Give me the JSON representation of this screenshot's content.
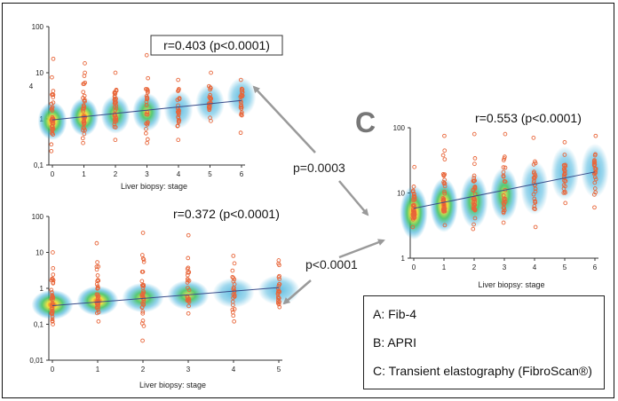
{
  "colors": {
    "points": "#e8663a",
    "regression": "#3a4d8a",
    "arrow": "#9a9a9a",
    "density": [
      "#2aa8d8",
      "#39c05a",
      "#f0e03a",
      "#ee3b1f"
    ]
  },
  "panel_letter": "C",
  "comparisons": {
    "ab": "p=0.0003",
    "bc": "p<0.0001"
  },
  "legend": {
    "items": [
      "A: Fib-4",
      "B: APRI",
      "C: Transient elastography (FibroScan®)"
    ]
  },
  "chart_data": [
    {
      "id": "A",
      "type": "scatter",
      "title": "r=0.403 (p<0.0001)",
      "title_boxed": true,
      "xlabel": "Liver biopsy: stage",
      "ylabel": "4",
      "yscale": "log",
      "ylim": [
        0.1,
        100
      ],
      "y_ticks": [
        0.1,
        1,
        10,
        100
      ],
      "y_tick_labels": [
        "0,1",
        "1",
        "10",
        "100"
      ],
      "x_ticks": [
        0,
        1,
        2,
        3,
        4,
        5,
        6
      ],
      "x_tick_labels": [
        "0",
        "1",
        "2",
        "3",
        "4",
        "5",
        "6"
      ],
      "groups": [
        {
          "x": 0,
          "median": 0.9,
          "min": 0.2,
          "max": 20
        },
        {
          "x": 1,
          "median": 1.1,
          "min": 0.3,
          "max": 16
        },
        {
          "x": 2,
          "median": 1.25,
          "min": 0.35,
          "max": 10
        },
        {
          "x": 3,
          "median": 1.4,
          "min": 0.3,
          "max": 24
        },
        {
          "x": 4,
          "median": 1.6,
          "min": 0.35,
          "max": 7
        },
        {
          "x": 5,
          "median": 2.2,
          "min": 0.9,
          "max": 10
        },
        {
          "x": 6,
          "median": 3,
          "min": 0.5,
          "max": 7
        }
      ],
      "regression": {
        "x": [
          0,
          6
        ],
        "y": [
          0.95,
          2.5
        ]
      }
    },
    {
      "id": "B",
      "type": "scatter",
      "title": "r=0.372 (p<0.0001)",
      "title_boxed": false,
      "xlabel": "Liver biopsy: stage",
      "ylabel": "",
      "yscale": "log",
      "ylim": [
        0.01,
        100
      ],
      "y_ticks": [
        0.01,
        0.1,
        1,
        10,
        100
      ],
      "y_tick_labels": [
        "0,01",
        "0,1",
        "1",
        "10",
        "100"
      ],
      "x_ticks": [
        0,
        1,
        2,
        3,
        4,
        5
      ],
      "x_tick_labels": [
        "0",
        "1",
        "2",
        "3",
        "4",
        "5"
      ],
      "groups": [
        {
          "x": 0,
          "median": 0.35,
          "min": 0.1,
          "max": 10
        },
        {
          "x": 1,
          "median": 0.45,
          "min": 0.12,
          "max": 18
        },
        {
          "x": 2,
          "median": 0.55,
          "min": 0.035,
          "max": 35
        },
        {
          "x": 3,
          "median": 0.65,
          "min": 0.2,
          "max": 30
        },
        {
          "x": 4,
          "median": 0.75,
          "min": 0.12,
          "max": 8
        },
        {
          "x": 5,
          "median": 0.9,
          "min": 0.3,
          "max": 6
        }
      ],
      "regression": {
        "x": [
          0,
          5
        ],
        "y": [
          0.33,
          1.05
        ]
      }
    },
    {
      "id": "C",
      "type": "scatter",
      "title": "r=0.553 (p<0.0001)",
      "title_boxed": false,
      "xlabel": "Liver biopsy: stage",
      "ylabel": "",
      "yscale": "log",
      "ylim": [
        1,
        100
      ],
      "y_ticks": [
        1,
        10,
        100
      ],
      "y_tick_labels": [
        "1",
        "10",
        "100"
      ],
      "x_ticks": [
        0,
        1,
        2,
        3,
        4,
        5,
        6
      ],
      "x_tick_labels": [
        "0",
        "1",
        "2",
        "3",
        "4",
        "5",
        "6"
      ],
      "groups": [
        {
          "x": 0,
          "median": 5,
          "min": 3,
          "max": 25
        },
        {
          "x": 1,
          "median": 6.5,
          "min": 3.2,
          "max": 75
        },
        {
          "x": 2,
          "median": 7.5,
          "min": 2.8,
          "max": 80
        },
        {
          "x": 3,
          "median": 9.5,
          "min": 3.5,
          "max": 80
        },
        {
          "x": 4,
          "median": 12,
          "min": 3,
          "max": 70
        },
        {
          "x": 5,
          "median": 20,
          "min": 7,
          "max": 60
        },
        {
          "x": 6,
          "median": 22,
          "min": 6,
          "max": 75
        }
      ],
      "regression": {
        "x": [
          0,
          6
        ],
        "y": [
          5.8,
          21
        ]
      }
    }
  ]
}
